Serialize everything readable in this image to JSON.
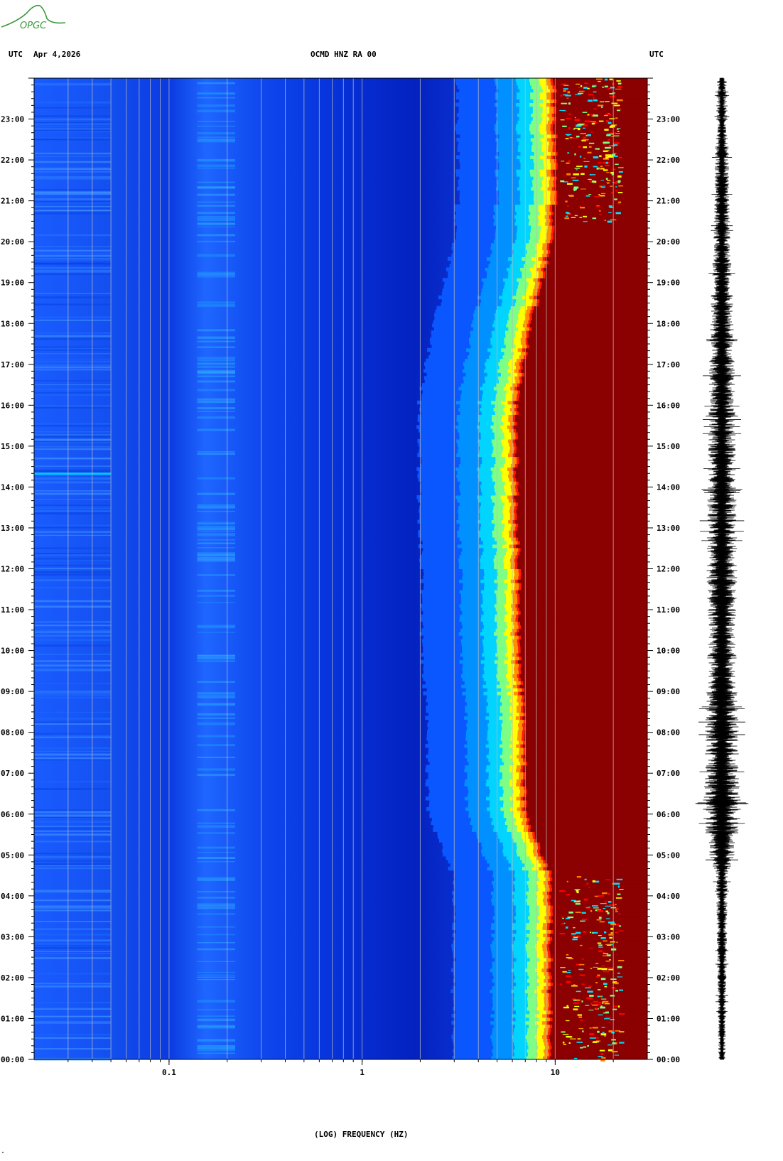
{
  "header": {
    "left_tz": "UTC",
    "date": "Apr 4,2026",
    "station": "OCMD HNZ RA 00",
    "right_tz": "UTC"
  },
  "logo": {
    "text": "OPGC",
    "color": "#3a9a3a"
  },
  "footmark": "\"",
  "chart_data": {
    "type": "heatmap",
    "subtype": "spectrogram",
    "xlabel": "(LOG) FREQUENCY (HZ)",
    "x_scale": "log",
    "x_range_hz": [
      0.02,
      30
    ],
    "x_ticks": [
      {
        "value": 0.1,
        "label": "0.1"
      },
      {
        "value": 1,
        "label": "1"
      },
      {
        "value": 10,
        "label": "10"
      }
    ],
    "y_range_hours": [
      0,
      24
    ],
    "y_ticks": [
      "00:00",
      "01:00",
      "02:00",
      "03:00",
      "04:00",
      "05:00",
      "06:00",
      "07:00",
      "08:00",
      "09:00",
      "10:00",
      "11:00",
      "12:00",
      "13:00",
      "14:00",
      "15:00",
      "16:00",
      "17:00",
      "18:00",
      "19:00",
      "20:00",
      "21:00",
      "22:00",
      "23:00"
    ],
    "gridlines_hz": [
      0.03,
      0.04,
      0.05,
      0.06,
      0.07,
      0.08,
      0.09,
      0.1,
      0.2,
      0.3,
      0.4,
      0.5,
      0.6,
      0.7,
      0.8,
      0.9,
      1,
      2,
      3,
      4,
      5,
      6,
      7,
      8,
      9,
      10,
      20
    ],
    "colormap": [
      "#00008b",
      "#0033cc",
      "#0066ff",
      "#00aaff",
      "#00e0ff",
      "#80ff80",
      "#ffff00",
      "#ff8000",
      "#ff0000",
      "#8b0000"
    ],
    "energy_edge_hz_by_hour": [
      {
        "hour": 0,
        "hz": 9.5
      },
      {
        "hour": 4.5,
        "hz": 9.5
      },
      {
        "hour": 5,
        "hz": 8.5
      },
      {
        "hour": 6,
        "hz": 7
      },
      {
        "hour": 8,
        "hz": 7
      },
      {
        "hour": 10,
        "hz": 6.5
      },
      {
        "hour": 12,
        "hz": 6.5
      },
      {
        "hour": 14,
        "hz": 6.3
      },
      {
        "hour": 16,
        "hz": 6.3
      },
      {
        "hour": 18,
        "hz": 7.5
      },
      {
        "hour": 19,
        "hz": 8.5
      },
      {
        "hour": 20,
        "hz": 9.5
      },
      {
        "hour": 21,
        "hz": 10
      },
      {
        "hour": 24,
        "hz": 10
      }
    ],
    "seismogram": {
      "units": "counts",
      "amplitude_by_hour": [
        {
          "hour": 0,
          "amp": 0.15
        },
        {
          "hour": 4.5,
          "amp": 0.25
        },
        {
          "hour": 5,
          "amp": 0.55
        },
        {
          "hour": 6,
          "amp": 0.8
        },
        {
          "hour": 8,
          "amp": 0.7
        },
        {
          "hour": 10,
          "amp": 0.6
        },
        {
          "hour": 12,
          "amp": 0.65
        },
        {
          "hour": 14,
          "amp": 0.6
        },
        {
          "hour": 16,
          "amp": 0.55
        },
        {
          "hour": 18,
          "amp": 0.5
        },
        {
          "hour": 20,
          "amp": 0.35
        },
        {
          "hour": 22,
          "amp": 0.3
        },
        {
          "hour": 24,
          "amp": 0.2
        }
      ]
    }
  }
}
